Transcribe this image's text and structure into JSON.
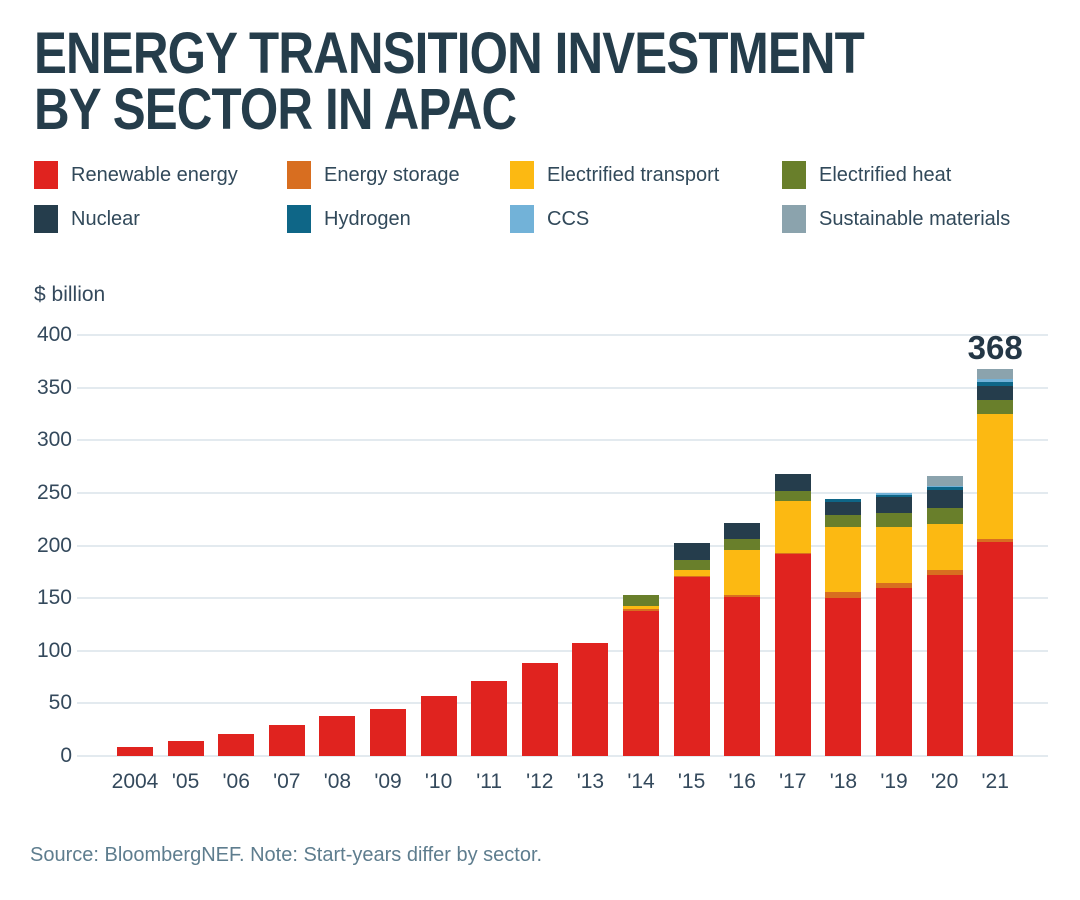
{
  "title": {
    "line1": "ENERGY TRANSITION INVESTMENT",
    "line2": "BY SECTOR IN APAC"
  },
  "ylabel": "$ billion",
  "annotation": {
    "label": "368",
    "category": "'21"
  },
  "source_note": "Source: BloombergNEF. Note: Start-years differ by sector.",
  "palette": {
    "title_color": "#253d4b",
    "axis_text_color": "#34495c",
    "legend_text_color": "#31495a",
    "gridline_color": "#e3eaef",
    "source_text_color": "#5e7d8e",
    "annotation_color": "#243746"
  },
  "chart_data": {
    "type": "bar",
    "stacked": true,
    "title": "Energy transition investment by sector in APAC",
    "ylabel": "$ billion",
    "ylim": [
      0,
      400
    ],
    "yticks": [
      0,
      50,
      100,
      150,
      200,
      250,
      300,
      350,
      400
    ],
    "grid": true,
    "legend_position": "top",
    "categories": [
      "2004",
      "'05",
      "'06",
      "'07",
      "'08",
      "'09",
      "'10",
      "'11",
      "'12",
      "'13",
      "'14",
      "'15",
      "'16",
      "'17",
      "'18",
      "'19",
      "'20",
      "'21"
    ],
    "series": [
      {
        "name": "Renewable energy",
        "color": "#e0231f",
        "values": [
          9,
          14,
          21,
          29,
          38,
          45,
          57,
          71,
          88,
          107,
          138,
          170,
          151,
          192,
          150,
          160,
          172,
          203
        ]
      },
      {
        "name": "Energy storage",
        "color": "#d86e20",
        "values": [
          0,
          0,
          0,
          0,
          0,
          0,
          0,
          0,
          0,
          0,
          2,
          1,
          2,
          1,
          6,
          4,
          5,
          3
        ]
      },
      {
        "name": "Electrified transport",
        "color": "#fcb912",
        "values": [
          0,
          0,
          0,
          0,
          0,
          0,
          0,
          0,
          0,
          0,
          3,
          6,
          43,
          49,
          62,
          54,
          43,
          119
        ]
      },
      {
        "name": "Electrified heat",
        "color": "#697f2b",
        "values": [
          0,
          0,
          0,
          0,
          0,
          0,
          0,
          0,
          0,
          0,
          10,
          9,
          10,
          10,
          11,
          13,
          16,
          13
        ]
      },
      {
        "name": "Nuclear",
        "color": "#253d4c",
        "values": [
          0,
          0,
          0,
          0,
          0,
          0,
          0,
          0,
          0,
          0,
          0,
          16,
          15,
          16,
          12,
          15,
          17,
          14
        ]
      },
      {
        "name": "Hydrogen",
        "color": "#0e6687",
        "values": [
          0,
          0,
          0,
          0,
          0,
          0,
          0,
          0,
          0,
          0,
          0,
          0,
          0,
          0,
          3,
          2,
          3,
          3
        ]
      },
      {
        "name": "CCS",
        "color": "#72b2d8",
        "values": [
          0,
          0,
          0,
          0,
          0,
          0,
          0,
          0,
          0,
          0,
          0,
          0,
          0,
          0,
          0,
          2,
          1,
          3
        ]
      },
      {
        "name": "Sustainable materials",
        "color": "#8ba3ad",
        "values": [
          0,
          0,
          0,
          0,
          0,
          0,
          0,
          0,
          0,
          0,
          0,
          0,
          0,
          0,
          0,
          0,
          9,
          10
        ]
      }
    ],
    "annotated_total": {
      "category": "'21",
      "value": 368
    }
  }
}
